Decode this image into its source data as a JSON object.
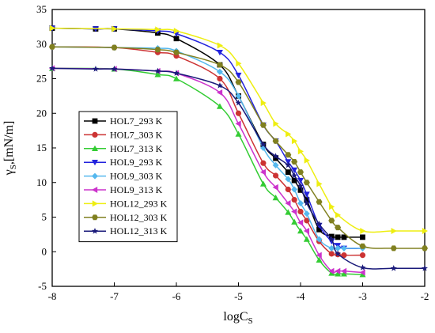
{
  "chart_data": {
    "type": "line",
    "xlabel_main": "logC",
    "xlabel_sub": "S",
    "ylabel_main": "γ",
    "ylabel_sub": "S",
    "ylabel_rest": ",[mN/m]",
    "xlim": [
      -8,
      -2
    ],
    "ylim": [
      -5,
      35
    ],
    "xticks": [
      -8,
      -7,
      -6,
      -5,
      -4,
      -3,
      -2
    ],
    "yticks": [
      -5,
      0,
      5,
      10,
      15,
      20,
      25,
      30,
      35
    ],
    "grid": false,
    "legend_position": "center-left",
    "series": [
      {
        "name": "HOL7_293 K",
        "color": "#000000",
        "marker": "square",
        "points": [
          [
            -8,
            32.3
          ],
          [
            -7.3,
            32.2
          ],
          [
            -7,
            32.2
          ],
          [
            -6.3,
            31.6
          ],
          [
            -6,
            30.8
          ],
          [
            -5.3,
            27.0
          ],
          [
            -5,
            22.5
          ],
          [
            -4.6,
            15.5
          ],
          [
            -4.4,
            13.5
          ],
          [
            -4.2,
            11.5
          ],
          [
            -4.1,
            10.3
          ],
          [
            -4.0,
            8.9
          ],
          [
            -3.9,
            7.5
          ],
          [
            -3.7,
            3.2
          ],
          [
            -3.5,
            2.2
          ],
          [
            -3.4,
            2.1
          ],
          [
            -3.3,
            2.1
          ],
          [
            -3,
            2.1
          ]
        ]
      },
      {
        "name": "HOL7_303 K",
        "color": "#cc3333",
        "marker": "circle",
        "points": [
          [
            -8,
            29.6
          ],
          [
            -7,
            29.5
          ],
          [
            -6.3,
            28.8
          ],
          [
            -6,
            28.3
          ],
          [
            -5.3,
            25.0
          ],
          [
            -5,
            20.0
          ],
          [
            -4.6,
            12.8
          ],
          [
            -4.4,
            11.0
          ],
          [
            -4.2,
            9.0
          ],
          [
            -4.1,
            7.5
          ],
          [
            -4.0,
            5.8
          ],
          [
            -3.9,
            4.5
          ],
          [
            -3.7,
            1.5
          ],
          [
            -3.5,
            -0.3
          ],
          [
            -3.4,
            -0.4
          ],
          [
            -3.3,
            -0.5
          ],
          [
            -3,
            -0.5
          ]
        ]
      },
      {
        "name": "HOL7_313 K",
        "color": "#33cc33",
        "marker": "triangle-up",
        "points": [
          [
            -8,
            26.5
          ],
          [
            -7,
            26.4
          ],
          [
            -6.3,
            25.6
          ],
          [
            -6,
            25.0
          ],
          [
            -5.3,
            21.0
          ],
          [
            -5,
            17.0
          ],
          [
            -4.6,
            9.8
          ],
          [
            -4.4,
            7.8
          ],
          [
            -4.2,
            5.7
          ],
          [
            -4.1,
            4.3
          ],
          [
            -4.0,
            3.0
          ],
          [
            -3.9,
            1.8
          ],
          [
            -3.7,
            -1.2
          ],
          [
            -3.5,
            -3.1
          ],
          [
            -3.4,
            -3.2
          ],
          [
            -3.3,
            -3.2
          ],
          [
            -3,
            -3.3
          ]
        ]
      },
      {
        "name": "HOL9_293 K",
        "color": "#2222dd",
        "marker": "triangle-down",
        "points": [
          [
            -8,
            32.3
          ],
          [
            -7.3,
            32.2
          ],
          [
            -7,
            32.2
          ],
          [
            -6.3,
            31.9
          ],
          [
            -6,
            31.5
          ],
          [
            -5.3,
            28.8
          ],
          [
            -5,
            25.5
          ],
          [
            -4.6,
            18.3
          ],
          [
            -4.4,
            16.0
          ],
          [
            -4.2,
            13.0
          ],
          [
            -4.1,
            11.8
          ],
          [
            -4.0,
            10.3
          ],
          [
            -3.9,
            8.3
          ],
          [
            -3.7,
            3.8
          ],
          [
            -3.5,
            1.5
          ],
          [
            -3.4,
            0.9
          ],
          [
            -3.3,
            0.5
          ],
          [
            -3,
            0.5
          ]
        ]
      },
      {
        "name": "HOL9_303 K",
        "color": "#55b8ee",
        "marker": "diamond",
        "points": [
          [
            -8,
            29.6
          ],
          [
            -7,
            29.5
          ],
          [
            -6.3,
            29.4
          ],
          [
            -6,
            29.0
          ],
          [
            -5.3,
            26.0
          ],
          [
            -5,
            22.5
          ],
          [
            -4.6,
            15.0
          ],
          [
            -4.4,
            12.5
          ],
          [
            -4.2,
            10.5
          ],
          [
            -4.1,
            9.0
          ],
          [
            -4.0,
            7.0
          ],
          [
            -3.9,
            5.5
          ],
          [
            -3.7,
            1.8
          ],
          [
            -3.5,
            0.5
          ],
          [
            -3.4,
            0.5
          ],
          [
            -3.3,
            0.5
          ],
          [
            -3,
            0.5
          ]
        ]
      },
      {
        "name": "HOL9_313 K",
        "color": "#cc33cc",
        "marker": "triangle-left",
        "points": [
          [
            -8,
            26.5
          ],
          [
            -7,
            26.4
          ],
          [
            -6.3,
            26.1
          ],
          [
            -6,
            25.8
          ],
          [
            -5.3,
            23.0
          ],
          [
            -5,
            18.5
          ],
          [
            -4.6,
            11.5
          ],
          [
            -4.4,
            9.3
          ],
          [
            -4.2,
            7.0
          ],
          [
            -4.1,
            5.8
          ],
          [
            -4.0,
            4.2
          ],
          [
            -3.9,
            3.0
          ],
          [
            -3.7,
            -0.5
          ],
          [
            -3.5,
            -2.8
          ],
          [
            -3.4,
            -2.8
          ],
          [
            -3.3,
            -2.8
          ],
          [
            -3,
            -3.0
          ]
        ]
      },
      {
        "name": "HOL12_293 K",
        "color": "#eeee11",
        "marker": "triangle-right",
        "points": [
          [
            -8,
            32.3
          ],
          [
            -7,
            32.2
          ],
          [
            -6.3,
            32.1
          ],
          [
            -6,
            31.9
          ],
          [
            -5.3,
            29.8
          ],
          [
            -5,
            27.2
          ],
          [
            -4.6,
            21.5
          ],
          [
            -4.4,
            18.5
          ],
          [
            -4.2,
            17.0
          ],
          [
            -4.1,
            16.0
          ],
          [
            -4.0,
            14.5
          ],
          [
            -3.9,
            13.2
          ],
          [
            -3.7,
            9.8
          ],
          [
            -3.5,
            6.5
          ],
          [
            -3.4,
            5.3
          ],
          [
            -3,
            3.0
          ],
          [
            -2.5,
            3.0
          ],
          [
            -2,
            3.0
          ]
        ]
      },
      {
        "name": "HOL12_303 K",
        "color": "#808020",
        "marker": "hexagon",
        "points": [
          [
            -8,
            29.6
          ],
          [
            -7,
            29.5
          ],
          [
            -6.3,
            29.2
          ],
          [
            -6,
            28.8
          ],
          [
            -5.3,
            27.0
          ],
          [
            -5,
            24.5
          ],
          [
            -4.6,
            18.3
          ],
          [
            -4.4,
            16.0
          ],
          [
            -4.2,
            14.0
          ],
          [
            -4.1,
            13.0
          ],
          [
            -4.0,
            11.5
          ],
          [
            -3.9,
            10.0
          ],
          [
            -3.7,
            7.2
          ],
          [
            -3.5,
            4.5
          ],
          [
            -3.4,
            3.5
          ],
          [
            -3,
            0.8
          ],
          [
            -2.5,
            0.5
          ],
          [
            -2,
            0.5
          ]
        ]
      },
      {
        "name": "HOL12_313 K",
        "color": "#1a1a7a",
        "marker": "star",
        "points": [
          [
            -8,
            26.5
          ],
          [
            -7.3,
            26.4
          ],
          [
            -7,
            26.4
          ],
          [
            -6.3,
            26.1
          ],
          [
            -6,
            25.8
          ],
          [
            -5.3,
            24.0
          ],
          [
            -5,
            21.5
          ],
          [
            -4.6,
            15.5
          ],
          [
            -4.4,
            13.8
          ],
          [
            -4.2,
            12.5
          ],
          [
            -4.1,
            11.0
          ],
          [
            -4.0,
            9.5
          ],
          [
            -3.9,
            7.0
          ],
          [
            -3.7,
            4.0
          ],
          [
            -3.5,
            1.8
          ],
          [
            -3.4,
            -0.3
          ],
          [
            -3,
            -2.3
          ],
          [
            -2.5,
            -2.4
          ],
          [
            -2,
            -2.4
          ]
        ]
      }
    ]
  }
}
